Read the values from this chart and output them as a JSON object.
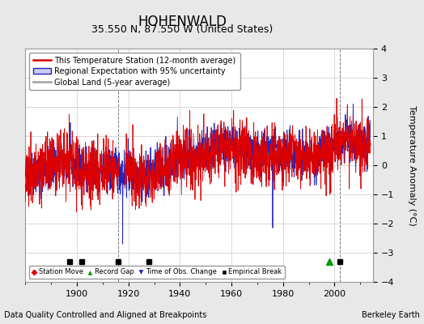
{
  "title": "HOHENWALD",
  "subtitle": "35.550 N, 87.550 W (United States)",
  "ylabel": "Temperature Anomaly (°C)",
  "xlim": [
    1880,
    2015
  ],
  "ylim": [
    -4,
    4
  ],
  "yticks": [
    -4,
    -3,
    -2,
    -1,
    0,
    1,
    2,
    3,
    4
  ],
  "xticks": [
    1900,
    1920,
    1940,
    1960,
    1980,
    2000
  ],
  "background_color": "#e8e8e8",
  "plot_bg_color": "#ffffff",
  "grid_color": "#c8c8c8",
  "footer_left": "Data Quality Controlled and Aligned at Breakpoints",
  "footer_right": "Berkeley Earth",
  "empirical_breaks": [
    1897,
    1902,
    1916,
    1928,
    2002
  ],
  "record_gaps": [
    1998
  ],
  "station_moves": [],
  "time_of_obs_changes": [],
  "vline_positions": [
    1916,
    2002
  ],
  "marker_y": -3.3,
  "seed": 42,
  "start_year": 1880,
  "end_year": 2014,
  "red_color": "#dd0000",
  "blue_color": "#2222bb",
  "band_color": "#c8ccee",
  "gray_color": "#aaaaaa",
  "title_fontsize": 12,
  "subtitle_fontsize": 9,
  "ylabel_fontsize": 8,
  "tick_fontsize": 8,
  "legend_fontsize": 7,
  "footer_fontsize": 7
}
